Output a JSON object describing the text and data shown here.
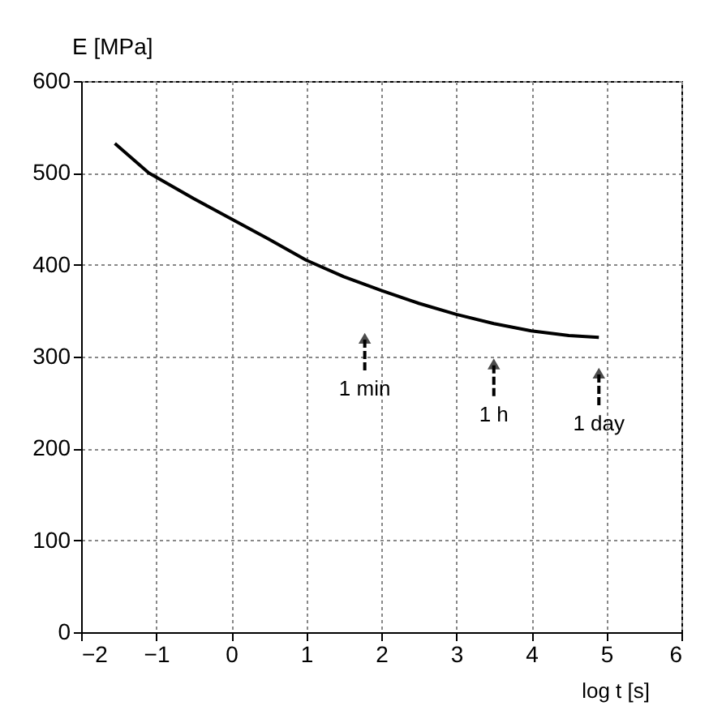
{
  "chart_data": {
    "type": "line",
    "xlabel": "log t [s]",
    "ylabel": "E [MPa]",
    "x": [
      -1.55,
      -1.1,
      -0.5,
      0,
      0.5,
      1,
      1.5,
      2,
      2.5,
      3,
      3.5,
      4,
      4.5,
      4.9
    ],
    "series": [
      {
        "color": "#000000",
        "values": [
          532,
          500,
          472,
          450,
          428,
          405,
          387,
          372,
          358,
          346,
          336,
          328,
          323,
          321
        ]
      }
    ],
    "xlim": [
      -2,
      6
    ],
    "ylim": [
      0,
      600
    ],
    "xticks": [
      -2,
      -1,
      0,
      1,
      2,
      3,
      4,
      5,
      6
    ],
    "yticks": [
      0,
      100,
      200,
      300,
      400,
      500,
      600
    ],
    "grid": true,
    "marker": "none",
    "line_style": "solid",
    "annotations": [
      {
        "text": "1 min",
        "x": 1.78,
        "y": 320
      },
      {
        "text": "1 h",
        "x": 3.5,
        "y": 292
      },
      {
        "text": "1 day",
        "x": 4.9,
        "y": 282
      }
    ]
  }
}
